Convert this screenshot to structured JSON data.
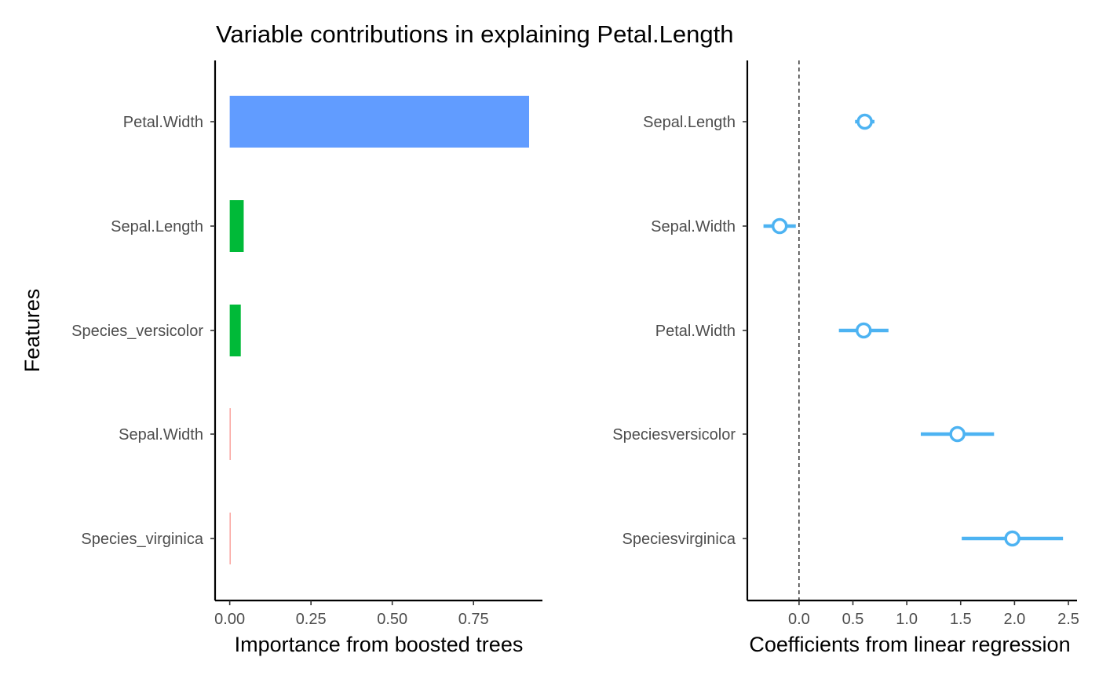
{
  "title": "Variable contributions in explaining Petal.Length",
  "chart_data": [
    {
      "type": "bar",
      "orientation": "horizontal",
      "xlabel": "Importance from boosted trees",
      "ylabel": "Features",
      "categories": [
        "Petal.Width",
        "Sepal.Length",
        "Species_versicolor",
        "Sepal.Width",
        "Species_virginica"
      ],
      "values": [
        0.921,
        0.043,
        0.034,
        0.002,
        0.001
      ],
      "bar_colors": [
        "#619CFF",
        "#00BA38",
        "#00BA38",
        "#F8766D",
        "#F8766D"
      ],
      "xlim": [
        -0.045,
        0.962
      ],
      "xticks": [
        0.0,
        0.25,
        0.5,
        0.75
      ],
      "xtick_labels": [
        "0.00",
        "0.25",
        "0.50",
        "0.75"
      ]
    },
    {
      "type": "scatter",
      "subtype": "pointrange",
      "xlabel": "Coefficients from linear regression",
      "ylabel": "",
      "categories": [
        "Sepal.Length",
        "Sepal.Width",
        "Petal.Width",
        "Speciesversicolor",
        "Speciesvirginica"
      ],
      "estimates": [
        0.61,
        -0.18,
        0.6,
        1.47,
        1.98
      ],
      "lower": [
        0.52,
        -0.33,
        0.37,
        1.13,
        1.51
      ],
      "upper": [
        0.7,
        -0.03,
        0.83,
        1.81,
        2.45
      ],
      "color": "#4DB3F2",
      "reference_line": 0,
      "xlim": [
        -0.48,
        2.58
      ],
      "xticks": [
        0.0,
        0.5,
        1.0,
        1.5,
        2.0,
        2.5
      ],
      "xtick_labels": [
        "0.0",
        "0.5",
        "1.0",
        "1.5",
        "2.0",
        "2.5"
      ]
    }
  ]
}
